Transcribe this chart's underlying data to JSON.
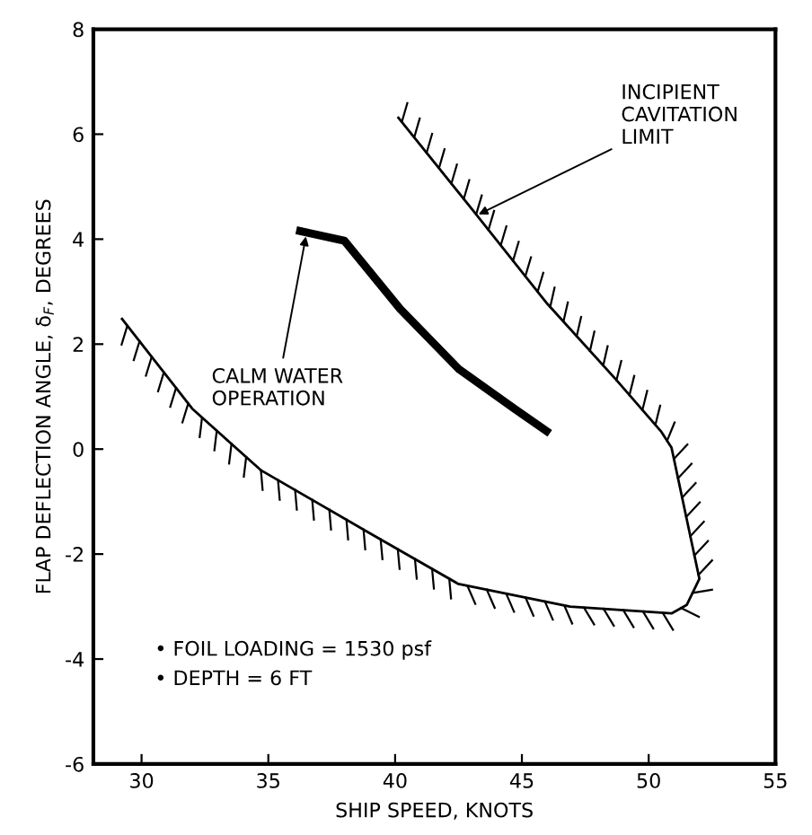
{
  "chart_data": {
    "type": "line",
    "xlabel": "SHIP SPEED, KNOTS",
    "ylabel": "FLAP DEFLECTION ANGLE, δ$_{F}$, DEGREES",
    "xlim": [
      28.1,
      55
    ],
    "ylim": [
      -6,
      8
    ],
    "xticks": [
      30,
      35,
      40,
      45,
      50,
      55
    ],
    "yticks": [
      -6,
      -4,
      -2,
      0,
      2,
      4,
      6,
      8
    ],
    "grid": false,
    "legend": false,
    "marker": "none",
    "line_style": "solid",
    "series": [
      {
        "color": "#000000",
        "x": [
          36.1,
          38.0,
          40.2,
          42.5,
          44.7,
          46.1
        ],
        "values": [
          4.17,
          3.97,
          2.67,
          1.53,
          0.77,
          0.3
        ]
      },
      {
        "color": "#000000",
        "x": [
          29.2,
          32.0,
          34.7,
          39.1,
          42.5,
          46.9,
          50.9,
          51.5,
          52.0,
          50.9,
          50.5,
          48.7,
          46.0,
          43.1,
          40.1
        ],
        "values": [
          2.5,
          0.77,
          -0.4,
          -1.63,
          -2.57,
          -3.0,
          -3.13,
          -2.97,
          -2.47,
          0.03,
          0.33,
          1.33,
          2.77,
          4.53,
          6.33
        ]
      }
    ],
    "annotations": [
      {
        "text": "CALM WATER\nOPERATION",
        "x": 36.5,
        "y": 4.1
      },
      {
        "text": "INCIPIENT\nCAVITATION\nLIMIT",
        "x": 43.2,
        "y": 4.45
      },
      "• FOIL LOADING = 1530 psf",
      "• DEPTH = 6 FT"
    ]
  }
}
